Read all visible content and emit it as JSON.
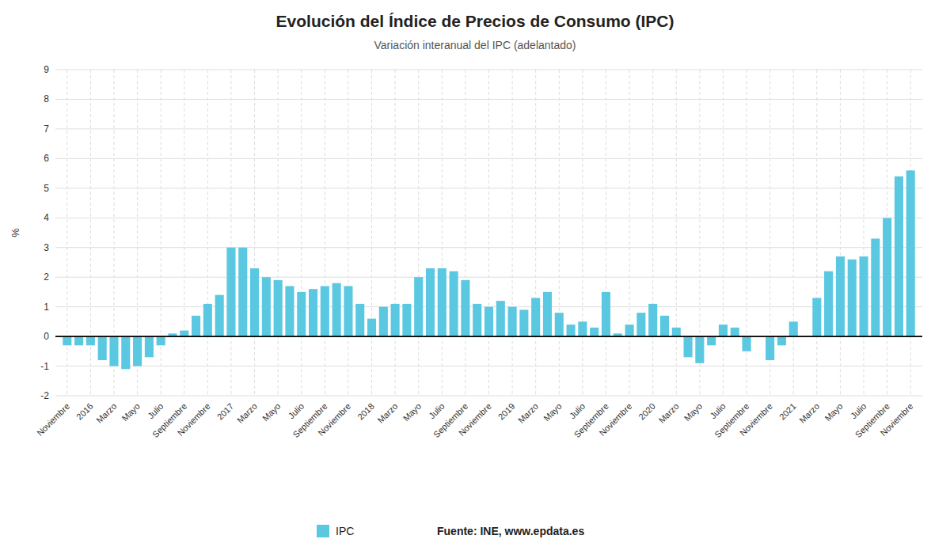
{
  "chart_data": {
    "type": "bar",
    "title": "Evolución del Índice de Precios de Consumo (IPC)",
    "subtitle": "Variación interanual del IPC (adelantado)",
    "ylabel": "%",
    "annotations": [
      "Fuente: INE, www.epdata.es"
    ],
    "categories": [
      "Noviembre",
      null,
      "2016",
      null,
      "Marzo",
      null,
      "Mayo",
      null,
      "Julio",
      null,
      "Septiembre",
      null,
      "Noviembre",
      null,
      "2017",
      null,
      "Marzo",
      null,
      "Mayo",
      null,
      "Julio",
      null,
      "Septiembre",
      null,
      "Noviembre",
      null,
      "2018",
      null,
      "Marzo",
      null,
      "Mayo",
      null,
      "Julio",
      null,
      "Septiembre",
      null,
      "Noviembre",
      null,
      "2019",
      null,
      "Marzo",
      null,
      "Mayo",
      null,
      "Julio",
      null,
      "Septiembre",
      null,
      "Noviembre",
      null,
      "2020",
      null,
      "Marzo",
      null,
      "Mayo",
      null,
      "Julio",
      null,
      "Septiembre",
      null,
      "Noviembre",
      null,
      "2021",
      null,
      "Marzo",
      null,
      "Mayo",
      null,
      "Julio",
      null,
      "Septiembre",
      null,
      "Noviembre"
    ],
    "series": [
      {
        "name": "IPC",
        "color": "#5bc8e2",
        "values": [
          -0.3,
          -0.3,
          -0.3,
          -0.8,
          -1.0,
          -1.1,
          -1.0,
          -0.7,
          -0.3,
          0.1,
          0.2,
          0.7,
          1.1,
          1.4,
          3.0,
          3.0,
          2.3,
          2.0,
          1.9,
          1.7,
          1.5,
          1.6,
          1.7,
          1.8,
          1.7,
          1.1,
          0.6,
          1.0,
          1.1,
          1.1,
          2.0,
          2.3,
          2.3,
          2.2,
          1.9,
          1.1,
          1.0,
          1.2,
          1.0,
          0.9,
          1.3,
          1.5,
          0.8,
          0.4,
          0.5,
          0.3,
          1.5,
          0.1,
          0.4,
          0.8,
          1.1,
          0.7,
          0.3,
          -0.7,
          -0.9,
          -0.3,
          0.4,
          0.3,
          -0.5,
          0.0,
          -0.8,
          -0.3,
          0.5,
          0.0,
          1.3,
          2.2,
          2.7,
          2.6,
          2.7,
          3.3,
          4.0,
          5.4,
          5.6
        ]
      }
    ],
    "ylim": [
      -2,
      9
    ],
    "yticks": [
      -2,
      -1,
      0,
      1,
      2,
      3,
      4,
      5,
      6,
      7,
      8,
      9
    ],
    "grid": true,
    "legend": "bottom"
  }
}
